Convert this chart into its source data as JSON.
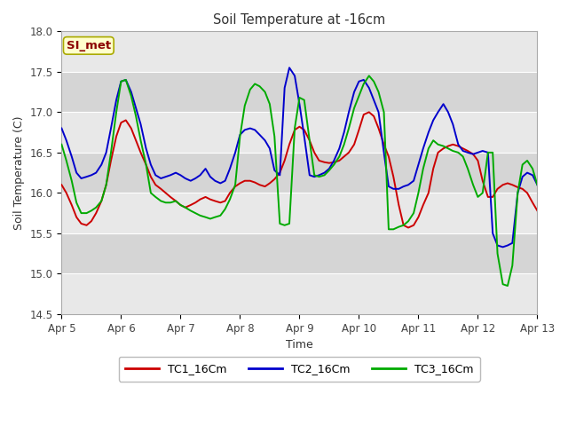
{
  "title": "Soil Temperature at -16cm",
  "xlabel": "Time",
  "ylabel": "Soil Temperature (C)",
  "ylim": [
    14.5,
    18.0
  ],
  "bg_color": "#ffffff",
  "plot_bg_color": "#ffffff",
  "band_colors": [
    "#e8e8e8",
    "#d5d5d5"
  ],
  "annotation_text": "SI_met",
  "annotation_color": "#8b0000",
  "annotation_bg": "#ffffcc",
  "annotation_border": "#aaaa00",
  "legend_labels": [
    "TC1_16Cm",
    "TC2_16Cm",
    "TC3_16Cm"
  ],
  "line_colors": [
    "#cc0000",
    "#0000cc",
    "#00aa00"
  ],
  "xtick_labels": [
    "Apr 5",
    "Apr 6",
    "Apr 7",
    "Apr 8",
    "Apr 9",
    "Apr 10",
    "Apr 11",
    "Apr 12",
    "Apr 13"
  ],
  "ytick_vals": [
    14.5,
    15.0,
    15.5,
    16.0,
    16.5,
    17.0,
    17.5,
    18.0
  ],
  "TC1": {
    "x": [
      0.0,
      0.08,
      0.17,
      0.25,
      0.33,
      0.42,
      0.5,
      0.58,
      0.67,
      0.75,
      0.83,
      0.92,
      1.0,
      1.08,
      1.17,
      1.25,
      1.33,
      1.42,
      1.5,
      1.58,
      1.67,
      1.75,
      1.83,
      1.92,
      2.0,
      2.08,
      2.17,
      2.25,
      2.33,
      2.42,
      2.5,
      2.58,
      2.67,
      2.75,
      2.83,
      2.92,
      3.0,
      3.08,
      3.17,
      3.25,
      3.33,
      3.42,
      3.5,
      3.58,
      3.67,
      3.75,
      3.83,
      3.92,
      4.0,
      4.08,
      4.17,
      4.25,
      4.33,
      4.42,
      4.5,
      4.58,
      4.67,
      4.75,
      4.83,
      4.92,
      5.0,
      5.08,
      5.17,
      5.25,
      5.33,
      5.42,
      5.5,
      5.58,
      5.67,
      5.75,
      5.83,
      5.92,
      6.0,
      6.08,
      6.17,
      6.25,
      6.33,
      6.42,
      6.5,
      6.58,
      6.67,
      6.75,
      6.83,
      6.92,
      7.0,
      7.08,
      7.17,
      7.25,
      7.33,
      7.42,
      7.5,
      7.58,
      7.67,
      7.75,
      7.83,
      7.92,
      8.0
    ],
    "y": [
      16.1,
      16.0,
      15.85,
      15.7,
      15.62,
      15.6,
      15.65,
      15.75,
      15.9,
      16.1,
      16.4,
      16.7,
      16.87,
      16.9,
      16.8,
      16.65,
      16.5,
      16.35,
      16.2,
      16.1,
      16.05,
      16.0,
      15.95,
      15.9,
      15.85,
      15.82,
      15.85,
      15.88,
      15.92,
      15.95,
      15.92,
      15.9,
      15.88,
      15.9,
      16.0,
      16.08,
      16.12,
      16.15,
      16.15,
      16.13,
      16.1,
      16.08,
      16.12,
      16.17,
      16.25,
      16.4,
      16.6,
      16.78,
      16.82,
      16.78,
      16.65,
      16.5,
      16.4,
      16.38,
      16.37,
      16.38,
      16.4,
      16.45,
      16.5,
      16.6,
      16.78,
      16.97,
      17.0,
      16.95,
      16.8,
      16.6,
      16.45,
      16.2,
      15.85,
      15.6,
      15.57,
      15.6,
      15.7,
      15.85,
      16.0,
      16.3,
      16.5,
      16.55,
      16.58,
      16.6,
      16.58,
      16.55,
      16.52,
      16.48,
      16.4,
      16.15,
      15.95,
      15.95,
      16.05,
      16.1,
      16.12,
      16.1,
      16.07,
      16.05,
      16.0,
      15.88,
      15.78
    ]
  },
  "TC2": {
    "x": [
      0.0,
      0.08,
      0.17,
      0.25,
      0.33,
      0.42,
      0.5,
      0.58,
      0.67,
      0.75,
      0.83,
      0.92,
      1.0,
      1.08,
      1.17,
      1.25,
      1.33,
      1.42,
      1.5,
      1.58,
      1.67,
      1.75,
      1.83,
      1.92,
      2.0,
      2.08,
      2.17,
      2.25,
      2.33,
      2.42,
      2.5,
      2.58,
      2.67,
      2.75,
      2.83,
      2.92,
      3.0,
      3.08,
      3.17,
      3.25,
      3.33,
      3.42,
      3.5,
      3.58,
      3.67,
      3.75,
      3.83,
      3.92,
      4.0,
      4.08,
      4.17,
      4.25,
      4.33,
      4.42,
      4.5,
      4.58,
      4.67,
      4.75,
      4.83,
      4.92,
      5.0,
      5.08,
      5.17,
      5.25,
      5.33,
      5.42,
      5.5,
      5.58,
      5.67,
      5.75,
      5.83,
      5.92,
      6.0,
      6.08,
      6.17,
      6.25,
      6.33,
      6.42,
      6.5,
      6.58,
      6.67,
      6.75,
      6.83,
      6.92,
      7.0,
      7.08,
      7.17,
      7.25,
      7.33,
      7.42,
      7.5,
      7.58,
      7.67,
      7.75,
      7.83,
      7.92,
      8.0
    ],
    "y": [
      16.8,
      16.65,
      16.45,
      16.25,
      16.18,
      16.2,
      16.22,
      16.25,
      16.35,
      16.5,
      16.8,
      17.15,
      17.38,
      17.4,
      17.25,
      17.05,
      16.85,
      16.55,
      16.35,
      16.22,
      16.18,
      16.2,
      16.22,
      16.25,
      16.22,
      16.18,
      16.15,
      16.18,
      16.22,
      16.3,
      16.2,
      16.15,
      16.12,
      16.15,
      16.3,
      16.5,
      16.72,
      16.78,
      16.8,
      16.78,
      16.72,
      16.65,
      16.55,
      16.28,
      16.22,
      17.3,
      17.55,
      17.45,
      17.1,
      16.7,
      16.22,
      16.2,
      16.22,
      16.25,
      16.3,
      16.4,
      16.55,
      16.75,
      17.0,
      17.25,
      17.38,
      17.4,
      17.3,
      17.15,
      17.0,
      16.5,
      16.08,
      16.05,
      16.05,
      16.08,
      16.1,
      16.15,
      16.35,
      16.55,
      16.75,
      16.9,
      17.0,
      17.1,
      17.0,
      16.85,
      16.6,
      16.52,
      16.5,
      16.48,
      16.5,
      16.52,
      16.5,
      15.5,
      15.35,
      15.33,
      15.35,
      15.38,
      16.0,
      16.2,
      16.25,
      16.22,
      16.1
    ]
  },
  "TC3": {
    "x": [
      0.0,
      0.08,
      0.17,
      0.25,
      0.33,
      0.42,
      0.5,
      0.58,
      0.67,
      0.75,
      0.83,
      0.92,
      1.0,
      1.08,
      1.17,
      1.25,
      1.33,
      1.42,
      1.5,
      1.58,
      1.67,
      1.75,
      1.83,
      1.92,
      2.0,
      2.08,
      2.17,
      2.25,
      2.33,
      2.42,
      2.5,
      2.58,
      2.67,
      2.75,
      2.83,
      2.92,
      3.0,
      3.08,
      3.17,
      3.25,
      3.33,
      3.42,
      3.5,
      3.58,
      3.67,
      3.75,
      3.83,
      3.92,
      4.0,
      4.08,
      4.17,
      4.25,
      4.33,
      4.42,
      4.5,
      4.58,
      4.67,
      4.75,
      4.83,
      4.92,
      5.0,
      5.08,
      5.17,
      5.25,
      5.33,
      5.42,
      5.5,
      5.58,
      5.67,
      5.75,
      5.83,
      5.92,
      6.0,
      6.08,
      6.17,
      6.25,
      6.33,
      6.42,
      6.5,
      6.58,
      6.67,
      6.75,
      6.83,
      6.92,
      7.0,
      7.08,
      7.17,
      7.25,
      7.33,
      7.42,
      7.5,
      7.58,
      7.67,
      7.75,
      7.83,
      7.92,
      8.0
    ],
    "y": [
      16.6,
      16.4,
      16.15,
      15.88,
      15.75,
      15.75,
      15.78,
      15.82,
      15.9,
      16.1,
      16.5,
      17.0,
      17.38,
      17.4,
      17.2,
      16.95,
      16.65,
      16.35,
      16.0,
      15.95,
      15.9,
      15.88,
      15.88,
      15.9,
      15.85,
      15.82,
      15.78,
      15.75,
      15.72,
      15.7,
      15.68,
      15.7,
      15.72,
      15.8,
      15.92,
      16.1,
      16.7,
      17.08,
      17.28,
      17.35,
      17.32,
      17.25,
      17.1,
      16.7,
      15.62,
      15.6,
      15.62,
      16.8,
      17.18,
      17.15,
      16.65,
      16.22,
      16.2,
      16.22,
      16.28,
      16.35,
      16.45,
      16.6,
      16.8,
      17.05,
      17.2,
      17.35,
      17.45,
      17.38,
      17.25,
      17.0,
      15.55,
      15.55,
      15.58,
      15.6,
      15.65,
      15.75,
      16.0,
      16.3,
      16.55,
      16.65,
      16.6,
      16.58,
      16.55,
      16.52,
      16.5,
      16.45,
      16.3,
      16.1,
      15.95,
      16.0,
      16.5,
      16.5,
      15.25,
      14.87,
      14.85,
      15.1,
      16.0,
      16.35,
      16.4,
      16.3,
      16.1
    ]
  }
}
